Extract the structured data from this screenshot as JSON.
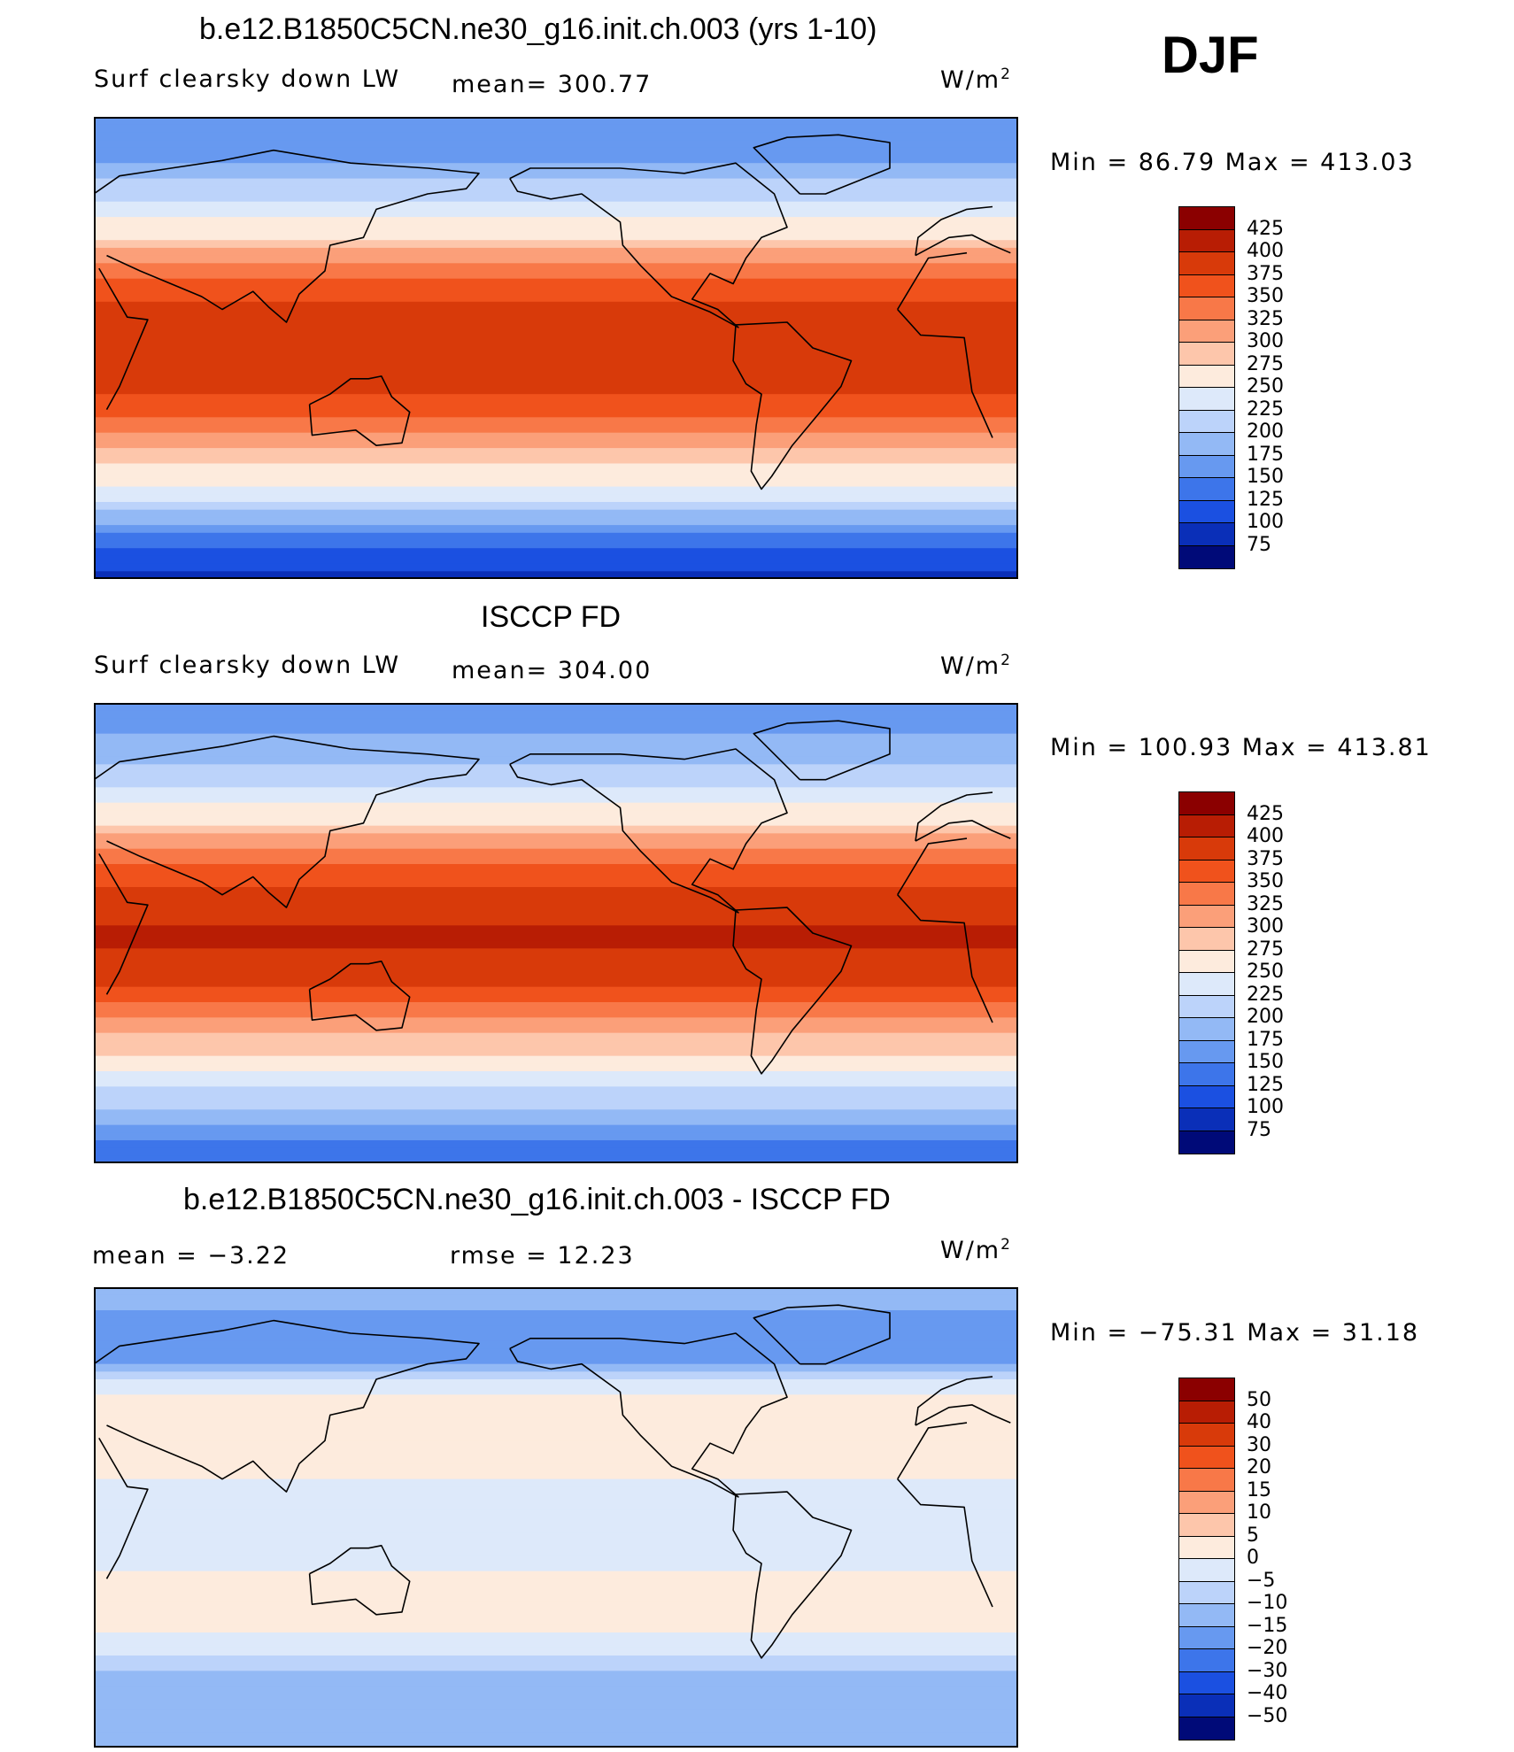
{
  "season": "DJF",
  "units": "W/m",
  "units_sup": "2",
  "panels": [
    {
      "title": "b.e12.B1850C5CN.ne30_g16.init.ch.003 (yrs 1-10)",
      "variable": "Surf clearsky down LW",
      "stat": "mean=  300.77",
      "minmax": "Min  =    86.79  Max  =  413.03",
      "colorbar": "abs"
    },
    {
      "title": "ISCCP FD",
      "variable": "Surf clearsky down LW",
      "stat": "mean=  304.00",
      "minmax": "Min  =  100.93  Max  =  413.81",
      "colorbar": "abs"
    },
    {
      "title": "b.e12.B1850C5CN.ne30_g16.init.ch.003 - ISCCP FD",
      "stat_mean": "mean  =     −3.22",
      "stat_rmse": "rmse  =     12.23",
      "minmax": "Min  =  −75.31  Max  =    31.18",
      "colorbar": "diff"
    }
  ],
  "colorbars": {
    "abs": {
      "levels": [
        "425",
        "400",
        "375",
        "350",
        "325",
        "300",
        "275",
        "250",
        "225",
        "200",
        "175",
        "150",
        "125",
        "100",
        "75"
      ],
      "colors": [
        "#8b0000",
        "#b81d04",
        "#d83a0a",
        "#f0521c",
        "#f87848",
        "#fb9f79",
        "#fdc6ab",
        "#fdebdd",
        "#dde9fa",
        "#bcd3fa",
        "#93b9f5",
        "#6799f0",
        "#3d75ea",
        "#1b50e1",
        "#0a2fb8",
        "#000a78"
      ]
    },
    "diff": {
      "levels": [
        "50",
        "40",
        "30",
        "20",
        "15",
        "10",
        "5",
        "0",
        "−5",
        "−10",
        "−15",
        "−20",
        "−30",
        "−40",
        "−50"
      ],
      "colors": [
        "#8b0000",
        "#b81d04",
        "#d83a0a",
        "#f0521c",
        "#f87848",
        "#fb9f79",
        "#fdc6ab",
        "#fdebdd",
        "#dde9fa",
        "#bcd3fa",
        "#93b9f5",
        "#6799f0",
        "#3d75ea",
        "#1b50e1",
        "#0a2fb8",
        "#000a78"
      ]
    }
  },
  "chart_data": [
    {
      "type": "heatmap",
      "title": "b.e12.B1850C5CN.ne30_g16.init.ch.003 (yrs 1-10)",
      "variable": "Surf clearsky down LW",
      "units": "W/m2",
      "mean": 300.77,
      "min": 86.79,
      "max": 413.03,
      "contour_levels": [
        75,
        100,
        125,
        150,
        175,
        200,
        225,
        250,
        275,
        300,
        325,
        350,
        375,
        400,
        425
      ],
      "projection": "cylindrical equidistant, Pacific-centered",
      "zonal_profile": [
        {
          "lat": 90,
          "value": 150
        },
        {
          "lat": 75,
          "value": 170
        },
        {
          "lat": 60,
          "value": 215
        },
        {
          "lat": 45,
          "value": 265
        },
        {
          "lat": 30,
          "value": 335
        },
        {
          "lat": 15,
          "value": 385
        },
        {
          "lat": 0,
          "value": 400
        },
        {
          "lat": -15,
          "value": 385
        },
        {
          "lat": -30,
          "value": 335
        },
        {
          "lat": -45,
          "value": 280
        },
        {
          "lat": -60,
          "value": 220
        },
        {
          "lat": -75,
          "value": 130
        },
        {
          "lat": -90,
          "value": 90
        }
      ]
    },
    {
      "type": "heatmap",
      "title": "ISCCP FD",
      "variable": "Surf clearsky down LW",
      "units": "W/m2",
      "mean": 304.0,
      "min": 100.93,
      "max": 413.81,
      "contour_levels": [
        75,
        100,
        125,
        150,
        175,
        200,
        225,
        250,
        275,
        300,
        325,
        350,
        375,
        400,
        425
      ],
      "projection": "cylindrical equidistant, Pacific-centered",
      "zonal_profile": [
        {
          "lat": 90,
          "value": 160
        },
        {
          "lat": 75,
          "value": 180
        },
        {
          "lat": 60,
          "value": 215
        },
        {
          "lat": 45,
          "value": 265
        },
        {
          "lat": 30,
          "value": 335
        },
        {
          "lat": 15,
          "value": 385
        },
        {
          "lat": 0,
          "value": 405
        },
        {
          "lat": -15,
          "value": 390
        },
        {
          "lat": -30,
          "value": 340
        },
        {
          "lat": -45,
          "value": 280
        },
        {
          "lat": -60,
          "value": 230
        },
        {
          "lat": -75,
          "value": 170
        },
        {
          "lat": -90,
          "value": 125
        }
      ]
    },
    {
      "type": "heatmap",
      "title": "b.e12.B1850C5CN.ne30_g16.init.ch.003 - ISCCP FD",
      "units": "W/m2",
      "mean": -3.22,
      "rmse": 12.23,
      "min": -75.31,
      "max": 31.18,
      "contour_levels": [
        -50,
        -40,
        -30,
        -20,
        -15,
        -10,
        -5,
        0,
        5,
        10,
        15,
        20,
        30,
        40,
        50
      ],
      "projection": "cylindrical equidistant, Pacific-centered",
      "zonal_profile": [
        {
          "lat": 90,
          "value": -10
        },
        {
          "lat": 75,
          "value": -20
        },
        {
          "lat": 60,
          "value": -15
        },
        {
          "lat": 45,
          "value": 5
        },
        {
          "lat": 30,
          "value": 3
        },
        {
          "lat": 15,
          "value": 0
        },
        {
          "lat": 0,
          "value": -3
        },
        {
          "lat": -15,
          "value": -2
        },
        {
          "lat": -30,
          "value": 2
        },
        {
          "lat": -45,
          "value": 0
        },
        {
          "lat": -60,
          "value": -10
        },
        {
          "lat": -75,
          "value": -15
        },
        {
          "lat": -90,
          "value": -15
        }
      ]
    }
  ]
}
